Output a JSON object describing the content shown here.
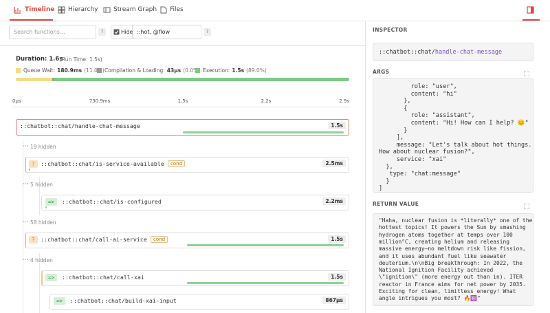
{
  "tabs": [
    "Timeline",
    "Hierarchy",
    "Stream Graph",
    "Files"
  ],
  "filters": {
    "search_placeholder": "Search functions...",
    "help": "?",
    "hide_label": "Hide",
    "hide_value": "::hot, @flow"
  },
  "summary": {
    "duration": "Duration: 1.6s",
    "run_time": "(Run Time: 1.5s)",
    "legend": [
      {
        "label": "Queue Wait:",
        "value": "180.9ms",
        "percent": "(11.0%)"
      },
      {
        "label": "Compilation & Loading:",
        "value": "43μs",
        "percent": "(0.0%)"
      },
      {
        "label": "Execution:",
        "value": "1.5s",
        "percent": "(89.0%)"
      }
    ]
  },
  "axis": [
    "0μs",
    "730.9ms",
    "1.5s",
    "2.2s",
    "2.9s"
  ],
  "rows": [
    {
      "name": "::chatbot::chat/handle-chat-message",
      "badge": "1.5s"
    },
    {
      "hidden": "19 hidden"
    },
    {
      "tag": "?",
      "name": "::chatbot::chat/is-service-available",
      "label": "cond",
      "badge": "2.5ms"
    },
    {
      "hidden": "5 hidden"
    },
    {
      "tag": "=>",
      "name": "::chatbot::chat/is-configured",
      "badge": "2.2ms"
    },
    {
      "hidden": "58 hidden"
    },
    {
      "tag": "?",
      "name": "::chatbot::chat/call-ai-service",
      "label": "cond",
      "badge": "1.5s"
    },
    {
      "hidden": "4 hidden"
    },
    {
      "tag": "=>",
      "name": "::chatbot::chat/call-xai",
      "badge": "1.5s"
    },
    {
      "tag": "=>",
      "name": "::chatbot::chat/build-xai-input",
      "badge": "867μs"
    }
  ],
  "inspector": {
    "title": "INSPECTOR",
    "fn_ns": "::chatbot::chat/",
    "fn_name": "handle-chat-message",
    "args_title": "ARGS",
    "args": [
      "         role: \"user\",",
      "         content: \"hi\"",
      "       },",
      "       {",
      "         role: \"assistant\",",
      "         content: \"Hi! How can I help? 😊\"",
      "       }",
      "     ],",
      "     message: \"Let's talk about hot things.",
      "How about nuclear fusion?\",",
      "     service: \"xai\"",
      "  },",
      "   type: \"chat:message\"",
      "  }",
      "]"
    ],
    "return_title": "RETURN VALUE",
    "return_value": [
      "\"Haha, nuclear fusion is *literally* one of the",
      "hottest topics! It powers the Sun by smashing",
      "hydrogen atoms together at temps over 100",
      "million°C, creating helium and releasing",
      "massive energy—no meltdown risk like fission,",
      "and it uses abundant fuel like seawater",
      "deuterium.\\n\\nBig breakthrough: In 2022, the",
      "National Ignition Facility achieved",
      "\\\"ignition\\\" (more energy out than in). ITER",
      "reactor in France aims for net power by 2035.",
      "Exciting for clean, limitless energy! What",
      "angle intrigues you most? 🔥⚛️\""
    ]
  }
}
